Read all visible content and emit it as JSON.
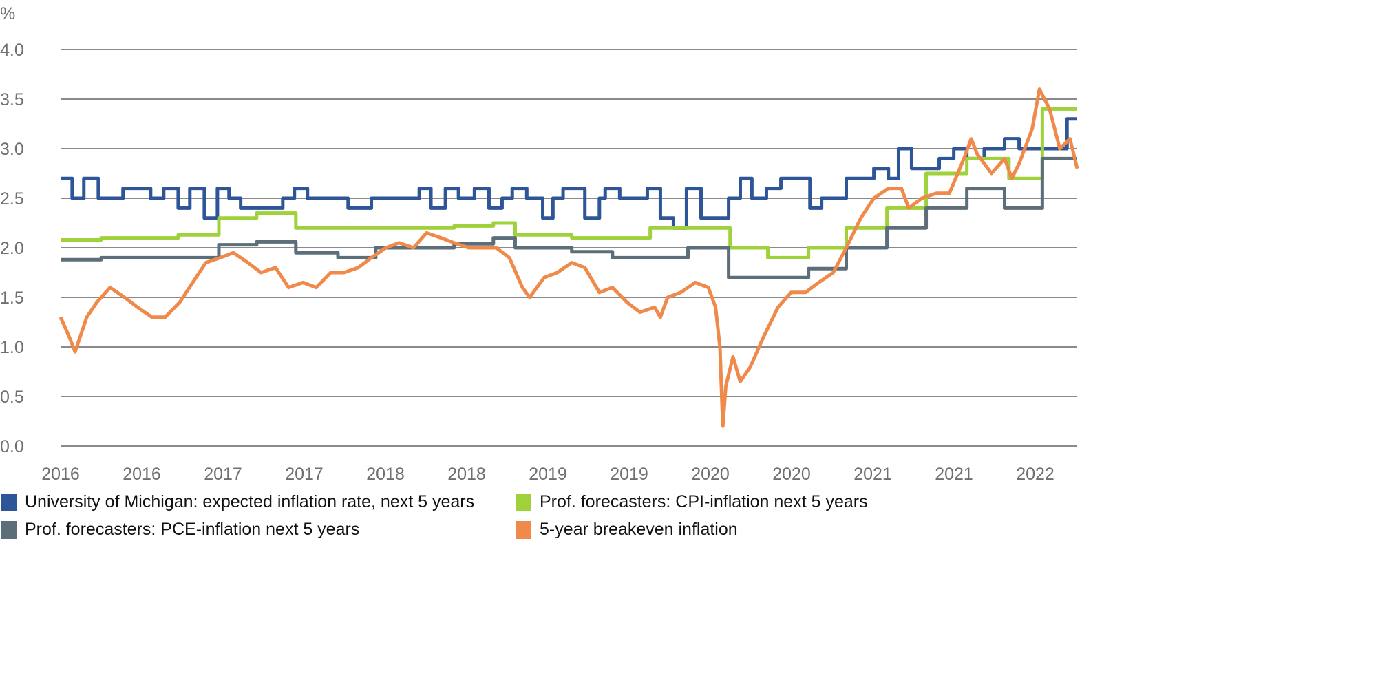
{
  "chart_data": {
    "type": "line",
    "title": "",
    "ylabel": "%",
    "xlabel": "",
    "ylim": [
      0,
      4
    ],
    "xlim": [
      2016.0,
      2023.0
    ],
    "grid": true,
    "yticks": [
      "0.0",
      "0.5",
      "1.0",
      "1.5",
      "2.0",
      "2.5",
      "3.0",
      "3.5",
      "4.0"
    ],
    "xtick_labels": [
      "2016",
      "2016",
      "2017",
      "2017",
      "2018",
      "2018",
      "2019",
      "2019",
      "2020",
      "2020",
      "2021",
      "2021",
      "2022"
    ],
    "legend_position": "bottom",
    "series": [
      {
        "name": "University of Michigan: expected inflation rate, next 5 years",
        "color": "#2d5597",
        "style": "step",
        "points": [
          [
            2016.0,
            2.7
          ],
          [
            2016.08,
            2.5
          ],
          [
            2016.16,
            2.7
          ],
          [
            2016.26,
            2.5
          ],
          [
            2016.43,
            2.6
          ],
          [
            2016.62,
            2.5
          ],
          [
            2016.71,
            2.6
          ],
          [
            2016.81,
            2.4
          ],
          [
            2016.89,
            2.6
          ],
          [
            2016.99,
            2.3
          ],
          [
            2017.08,
            2.6
          ],
          [
            2017.16,
            2.5
          ],
          [
            2017.24,
            2.4
          ],
          [
            2017.53,
            2.5
          ],
          [
            2017.61,
            2.6
          ],
          [
            2017.7,
            2.5
          ],
          [
            2017.98,
            2.4
          ],
          [
            2018.14,
            2.5
          ],
          [
            2018.47,
            2.6
          ],
          [
            2018.55,
            2.4
          ],
          [
            2018.65,
            2.6
          ],
          [
            2018.74,
            2.5
          ],
          [
            2018.85,
            2.6
          ],
          [
            2018.95,
            2.4
          ],
          [
            2019.04,
            2.5
          ],
          [
            2019.11,
            2.6
          ],
          [
            2019.21,
            2.5
          ],
          [
            2019.32,
            2.3
          ],
          [
            2019.39,
            2.5
          ],
          [
            2019.46,
            2.6
          ],
          [
            2019.61,
            2.3
          ],
          [
            2019.71,
            2.5
          ],
          [
            2019.75,
            2.6
          ],
          [
            2019.85,
            2.5
          ],
          [
            2020.04,
            2.6
          ],
          [
            2020.13,
            2.3
          ],
          [
            2020.22,
            2.2
          ],
          [
            2020.31,
            2.6
          ],
          [
            2020.41,
            2.3
          ],
          [
            2020.6,
            2.5
          ],
          [
            2020.68,
            2.7
          ],
          [
            2020.76,
            2.5
          ],
          [
            2020.86,
            2.6
          ],
          [
            2020.96,
            2.7
          ],
          [
            2021.16,
            2.4
          ],
          [
            2021.24,
            2.5
          ],
          [
            2021.41,
            2.7
          ],
          [
            2021.6,
            2.8
          ],
          [
            2021.7,
            2.7
          ],
          [
            2021.77,
            3.0
          ],
          [
            2021.86,
            2.8
          ],
          [
            2022.05,
            2.9
          ],
          [
            2022.15,
            3.0
          ],
          [
            2022.24,
            2.9
          ],
          [
            2022.36,
            3.0
          ],
          [
            2022.5,
            3.1
          ],
          [
            2022.6,
            3.0
          ],
          [
            2022.93,
            3.3
          ]
        ]
      },
      {
        "name": "Prof. forecasters: CPI-inflation next 5 years",
        "color": "#9fd13a",
        "style": "step",
        "points": [
          [
            2016.0,
            2.08
          ],
          [
            2016.28,
            2.1
          ],
          [
            2016.81,
            2.13
          ],
          [
            2017.09,
            2.3
          ],
          [
            2017.35,
            2.35
          ],
          [
            2017.62,
            2.2
          ],
          [
            2018.71,
            2.22
          ],
          [
            2018.98,
            2.25
          ],
          [
            2019.13,
            2.13
          ],
          [
            2019.52,
            2.1
          ],
          [
            2020.06,
            2.2
          ],
          [
            2020.61,
            2.0
          ],
          [
            2020.87,
            1.9
          ],
          [
            2021.15,
            2.0
          ],
          [
            2021.41,
            2.2
          ],
          [
            2021.69,
            2.4
          ],
          [
            2021.96,
            2.75
          ],
          [
            2022.24,
            2.9
          ],
          [
            2022.53,
            2.7
          ],
          [
            2022.76,
            3.4
          ]
        ]
      },
      {
        "name": "Prof. forecasters: PCE-inflation next 5 years",
        "color": "#5b6e79",
        "style": "step",
        "points": [
          [
            2016.0,
            1.88
          ],
          [
            2016.28,
            1.9
          ],
          [
            2017.09,
            2.03
          ],
          [
            2017.35,
            2.06
          ],
          [
            2017.62,
            1.95
          ],
          [
            2017.91,
            1.9
          ],
          [
            2018.17,
            2.0
          ],
          [
            2018.71,
            2.04
          ],
          [
            2018.98,
            2.1
          ],
          [
            2019.13,
            2.0
          ],
          [
            2019.52,
            1.96
          ],
          [
            2019.8,
            1.9
          ],
          [
            2020.32,
            2.0
          ],
          [
            2020.6,
            1.7
          ],
          [
            2021.15,
            1.79
          ],
          [
            2021.41,
            2.0
          ],
          [
            2021.69,
            2.2
          ],
          [
            2021.96,
            2.4
          ],
          [
            2022.24,
            2.6
          ],
          [
            2022.5,
            2.4
          ],
          [
            2022.76,
            2.9
          ]
        ]
      },
      {
        "name": "5-year breakeven inflation",
        "color": "#ef8a4a",
        "style": "line",
        "points": [
          [
            2016.0,
            1.3
          ],
          [
            2016.06,
            1.1
          ],
          [
            2016.1,
            0.95
          ],
          [
            2016.18,
            1.3
          ],
          [
            2016.25,
            1.45
          ],
          [
            2016.34,
            1.6
          ],
          [
            2016.44,
            1.5
          ],
          [
            2016.53,
            1.4
          ],
          [
            2016.63,
            1.3
          ],
          [
            2016.72,
            1.3
          ],
          [
            2016.82,
            1.45
          ],
          [
            2016.91,
            1.65
          ],
          [
            2017.0,
            1.85
          ],
          [
            2017.1,
            1.9
          ],
          [
            2017.19,
            1.95
          ],
          [
            2017.29,
            1.85
          ],
          [
            2017.38,
            1.75
          ],
          [
            2017.48,
            1.8
          ],
          [
            2017.57,
            1.6
          ],
          [
            2017.67,
            1.65
          ],
          [
            2017.76,
            1.6
          ],
          [
            2017.86,
            1.75
          ],
          [
            2017.95,
            1.75
          ],
          [
            2018.05,
            1.8
          ],
          [
            2018.14,
            1.9
          ],
          [
            2018.24,
            2.0
          ],
          [
            2018.33,
            2.05
          ],
          [
            2018.43,
            2.0
          ],
          [
            2018.52,
            2.15
          ],
          [
            2018.62,
            2.1
          ],
          [
            2018.71,
            2.05
          ],
          [
            2018.81,
            2.0
          ],
          [
            2018.9,
            2.0
          ],
          [
            2019.0,
            2.0
          ],
          [
            2019.09,
            1.9
          ],
          [
            2019.18,
            1.6
          ],
          [
            2019.23,
            1.5
          ],
          [
            2019.33,
            1.7
          ],
          [
            2019.42,
            1.75
          ],
          [
            2019.52,
            1.85
          ],
          [
            2019.61,
            1.8
          ],
          [
            2019.71,
            1.55
          ],
          [
            2019.8,
            1.6
          ],
          [
            2019.9,
            1.45
          ],
          [
            2019.99,
            1.35
          ],
          [
            2020.09,
            1.4
          ],
          [
            2020.13,
            1.3
          ],
          [
            2020.18,
            1.5
          ],
          [
            2020.27,
            1.55
          ],
          [
            2020.37,
            1.65
          ],
          [
            2020.46,
            1.6
          ],
          [
            2020.51,
            1.4
          ],
          [
            2020.54,
            1.0
          ],
          [
            2020.56,
            0.2
          ],
          [
            2020.58,
            0.6
          ],
          [
            2020.63,
            0.9
          ],
          [
            2020.68,
            0.65
          ],
          [
            2020.75,
            0.8
          ],
          [
            2020.84,
            1.1
          ],
          [
            2020.94,
            1.4
          ],
          [
            2021.03,
            1.55
          ],
          [
            2021.13,
            1.55
          ],
          [
            2021.22,
            1.65
          ],
          [
            2021.32,
            1.75
          ],
          [
            2021.41,
            2.0
          ],
          [
            2021.51,
            2.3
          ],
          [
            2021.6,
            2.5
          ],
          [
            2021.7,
            2.6
          ],
          [
            2021.79,
            2.6
          ],
          [
            2021.84,
            2.4
          ],
          [
            2021.93,
            2.5
          ],
          [
            2022.03,
            2.55
          ],
          [
            2022.12,
            2.55
          ],
          [
            2022.22,
            2.9
          ],
          [
            2022.27,
            3.1
          ],
          [
            2022.31,
            2.95
          ],
          [
            2022.41,
            2.75
          ],
          [
            2022.5,
            2.9
          ],
          [
            2022.55,
            2.7
          ],
          [
            2022.6,
            2.85
          ],
          [
            2022.69,
            3.2
          ],
          [
            2022.74,
            3.6
          ],
          [
            2022.81,
            3.4
          ],
          [
            2022.88,
            3.0
          ],
          [
            2022.95,
            3.1
          ],
          [
            2023.0,
            2.8
          ]
        ]
      }
    ]
  }
}
